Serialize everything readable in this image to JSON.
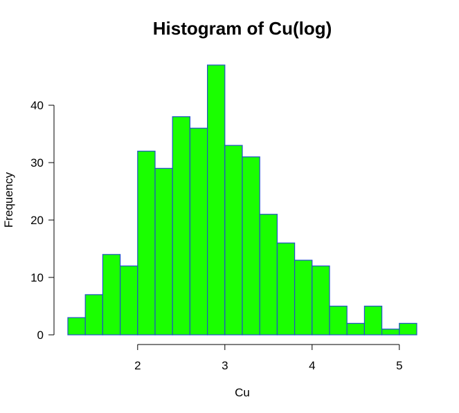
{
  "chart_data": {
    "type": "bar",
    "subtype": "histogram",
    "title": "Histogram of Cu(log)",
    "xlabel": "Cu",
    "ylabel": "Frequency",
    "bin_edges": [
      1.2,
      1.4,
      1.6,
      1.8,
      2.0,
      2.2,
      2.4,
      2.6,
      2.8,
      3.0,
      3.2,
      3.4,
      3.6,
      3.8,
      4.0,
      4.2,
      4.4,
      4.6,
      4.8,
      5.0,
      5.2
    ],
    "values": [
      3,
      7,
      14,
      12,
      32,
      29,
      38,
      36,
      47,
      33,
      31,
      21,
      16,
      13,
      12,
      5,
      2,
      5,
      1,
      2
    ],
    "xticks": [
      2,
      3,
      4,
      5
    ],
    "yticks": [
      0,
      10,
      20,
      30,
      40
    ],
    "xlim": [
      1.2,
      5.2
    ],
    "ylim": [
      0,
      47
    ],
    "grid": false,
    "legend": "none",
    "bar_fill": "#1aff00",
    "bar_edge": "#2050c8"
  }
}
